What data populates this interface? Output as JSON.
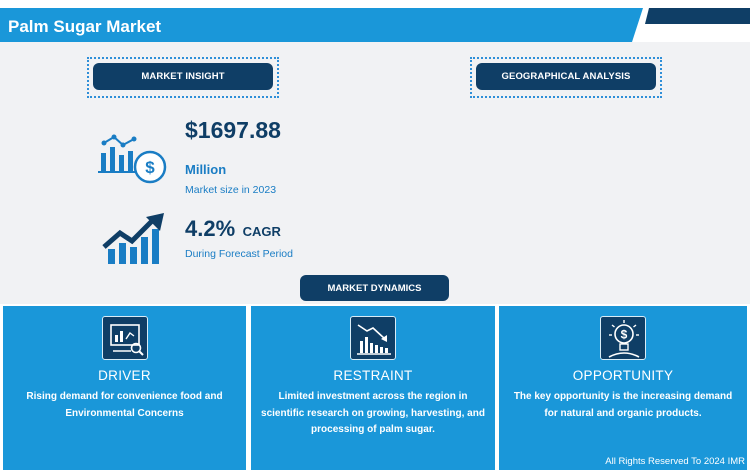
{
  "header": {
    "title": "Palm Sugar Market"
  },
  "sections": {
    "market_insight": "MARKET INSIGHT",
    "geographical_analysis": "GEOGRAPHICAL ANALYSIS",
    "market_dynamics": "MARKET DYNAMICS"
  },
  "insight": {
    "market_size_value": "$1697.88",
    "market_size_unit": "Million",
    "market_size_label": "Market size in 2023",
    "cagr_value": "4.2%",
    "cagr_label": "CAGR",
    "forecast_label": "During Forecast Period"
  },
  "dynamics": [
    {
      "title": "DRIVER",
      "text": "Rising demand for convenience food and Environmental Concerns",
      "icon": "analytics-board-icon"
    },
    {
      "title": "RESTRAINT",
      "text": "Limited investment across the region in scientific research on growing, harvesting, and processing of palm sugar.",
      "icon": "declining-chart-icon"
    },
    {
      "title": "OPPORTUNITY",
      "text": "The key opportunity is the increasing demand for natural and organic products.",
      "icon": "dollar-bulb-icon"
    }
  ],
  "footer": {
    "rights": "All Rights Reserved To 2024 IMR"
  },
  "colors": {
    "navy": "#0f3e66",
    "blue": "#1a97d9",
    "accent": "#2f8fd8",
    "light_bg": "#f1f2f4"
  }
}
